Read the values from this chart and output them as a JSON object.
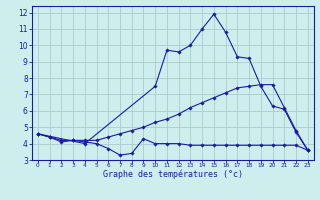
{
  "xlabel": "Graphe des températures (°c)",
  "background_color": "#ceeeed",
  "grid_color": "#aacccc",
  "line_color": "#1a1aaa",
  "xlim": [
    -0.5,
    23.5
  ],
  "ylim": [
    3,
    12.4
  ],
  "yticks": [
    3,
    4,
    5,
    6,
    7,
    8,
    9,
    10,
    11,
    12
  ],
  "xticks": [
    0,
    1,
    2,
    3,
    4,
    5,
    6,
    7,
    8,
    9,
    10,
    11,
    12,
    13,
    14,
    15,
    16,
    17,
    18,
    19,
    20,
    21,
    22,
    23
  ],
  "series": [
    {
      "x": [
        0,
        1,
        2,
        3,
        4,
        5,
        6,
        7,
        8,
        9,
        10,
        11,
        12,
        13,
        14,
        15,
        16,
        17,
        18,
        19,
        20,
        21,
        22,
        23
      ],
      "y": [
        4.6,
        4.4,
        4.1,
        4.2,
        4.1,
        4.0,
        3.7,
        3.3,
        3.4,
        4.3,
        4.0,
        4.0,
        4.0,
        3.9,
        3.9,
        3.9,
        3.9,
        3.9,
        3.9,
        3.9,
        3.9,
        3.9,
        3.9,
        3.6
      ],
      "marker": "D",
      "markersize": 1.8
    },
    {
      "x": [
        0,
        1,
        2,
        3,
        4,
        5,
        6,
        7,
        8,
        9,
        10,
        11,
        12,
        13,
        14,
        15,
        16,
        17,
        18,
        19,
        20,
        21,
        22,
        23
      ],
      "y": [
        4.6,
        4.4,
        4.2,
        4.2,
        4.2,
        4.2,
        4.4,
        4.6,
        4.8,
        5.0,
        5.3,
        5.5,
        5.8,
        6.2,
        6.5,
        6.8,
        7.1,
        7.4,
        7.5,
        7.6,
        7.6,
        6.2,
        4.8,
        3.6
      ],
      "marker": "D",
      "markersize": 1.8
    },
    {
      "x": [
        0,
        4,
        10,
        11,
        12,
        13,
        14,
        15,
        16,
        17,
        18,
        19,
        20,
        21,
        22,
        23
      ],
      "y": [
        4.6,
        4.0,
        7.5,
        9.7,
        9.6,
        10.0,
        11.0,
        11.9,
        10.8,
        9.3,
        9.2,
        7.5,
        6.3,
        6.1,
        4.7,
        3.6
      ],
      "marker": "D",
      "markersize": 1.8
    }
  ]
}
